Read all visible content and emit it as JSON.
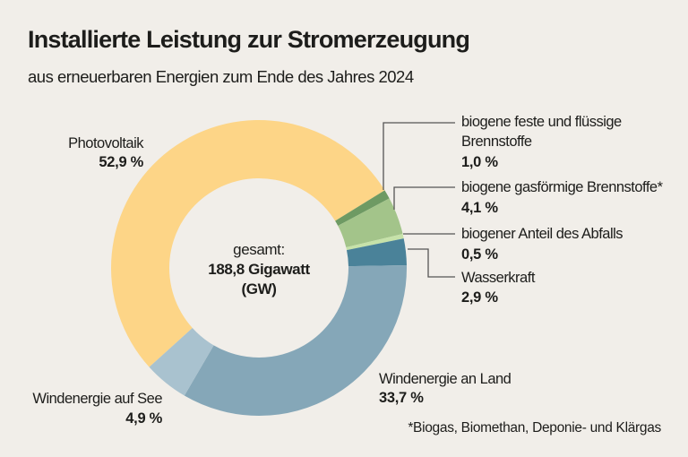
{
  "chart_data": {
    "type": "pie",
    "variant": "donut",
    "title": "Installierte Leistung zur Stromerzeugung",
    "subtitle": "aus erneuerbaren Energien zum Ende des Jahres 2024",
    "center": {
      "line1": "gesamt:",
      "line2": "188,8 Gigawatt",
      "line3": "(GW)"
    },
    "unit": "%",
    "slices": [
      {
        "name": "Photovoltaik",
        "value": 52.9,
        "label": "52,9 %",
        "color": "#fdd587"
      },
      {
        "name": "biogene feste und flüssige Brennstoffe",
        "name_lines": [
          "biogene feste und flüssige",
          "Brennstoffe"
        ],
        "value": 1.0,
        "label": "1,0 %",
        "color": "#6e9a63"
      },
      {
        "name": "biogene gasförmige Brennstoffe*",
        "value": 4.1,
        "label": "4,1 %",
        "color": "#a3c48a"
      },
      {
        "name": "biogener Anteil des Abfalls",
        "value": 0.5,
        "label": "0,5 %",
        "color": "#c6e2a9"
      },
      {
        "name": "Wasserkraft",
        "value": 2.9,
        "label": "2,9 %",
        "color": "#4a8299"
      },
      {
        "name": "Windenergie an Land",
        "value": 33.7,
        "label": "33,7 %",
        "color": "#85a7b8"
      },
      {
        "name": "Windenergie auf See",
        "value": 4.9,
        "label": "4,9 %",
        "color": "#a9c2cf"
      }
    ],
    "footnote": "*Biogas, Biomethan, Deponie- und Klärgas",
    "background": "#f1eee9"
  }
}
